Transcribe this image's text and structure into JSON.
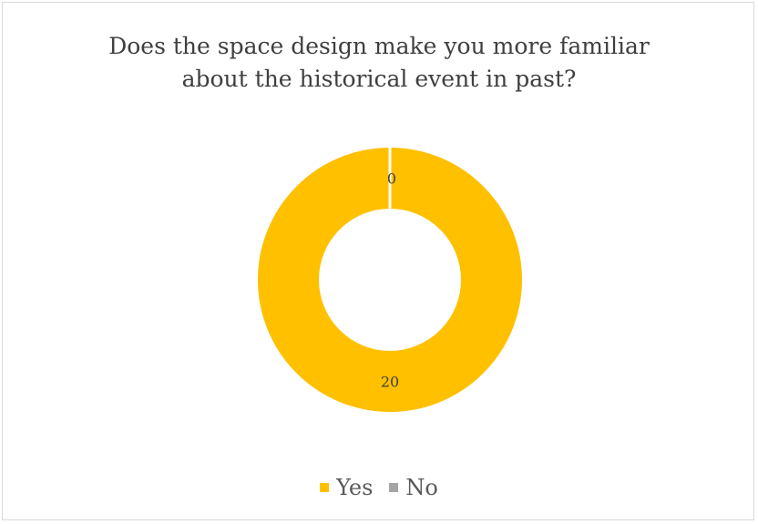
{
  "chart_data": {
    "type": "pie",
    "variant": "donut",
    "title_lines": [
      "Does the space design make you more familiar",
      "about the historical event in past?"
    ],
    "categories": [
      "Yes",
      "No"
    ],
    "values": [
      20,
      0
    ],
    "data_labels": [
      "20",
      "0"
    ],
    "colors": [
      "#ffc000",
      "#a5a5a5"
    ],
    "legend_placement": "bottom"
  }
}
